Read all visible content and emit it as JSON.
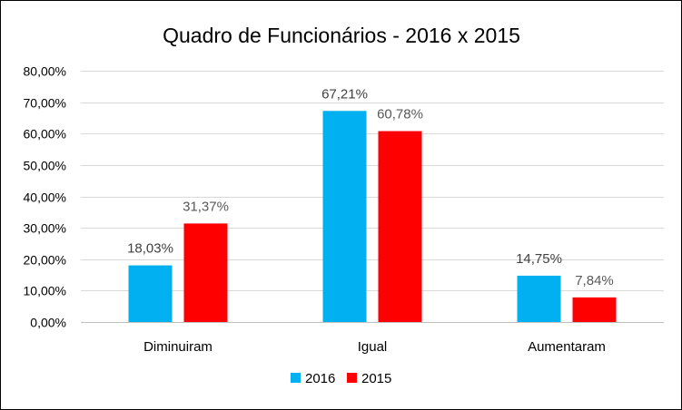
{
  "chart_data": {
    "type": "bar",
    "title": "Quadro de Funcionários - 2016 x 2015",
    "categories": [
      "Diminuiram",
      "Igual",
      "Aumentaram"
    ],
    "series": [
      {
        "name": "2016",
        "color": "#00B0F0",
        "values": [
          18.03,
          67.21,
          14.75
        ],
        "labels": [
          "18,03%",
          "67,21%",
          "14,75%"
        ],
        "label_color": "#404040"
      },
      {
        "name": "2015",
        "color": "#FF0000",
        "values": [
          31.37,
          60.78,
          7.84
        ],
        "labels": [
          "31,37%",
          "60,78%",
          "7,84%"
        ],
        "label_color": "#595959"
      }
    ],
    "ylim": [
      0,
      80
    ],
    "y_ticks": [
      0,
      10,
      20,
      30,
      40,
      50,
      60,
      70,
      80
    ],
    "y_tick_labels": [
      "0,00%",
      "10,00%",
      "20,00%",
      "30,00%",
      "40,00%",
      "50,00%",
      "60,00%",
      "70,00%",
      "80,00%"
    ],
    "grid": true,
    "gridline_color": "#D9D9D9",
    "legend_position": "bottom"
  }
}
